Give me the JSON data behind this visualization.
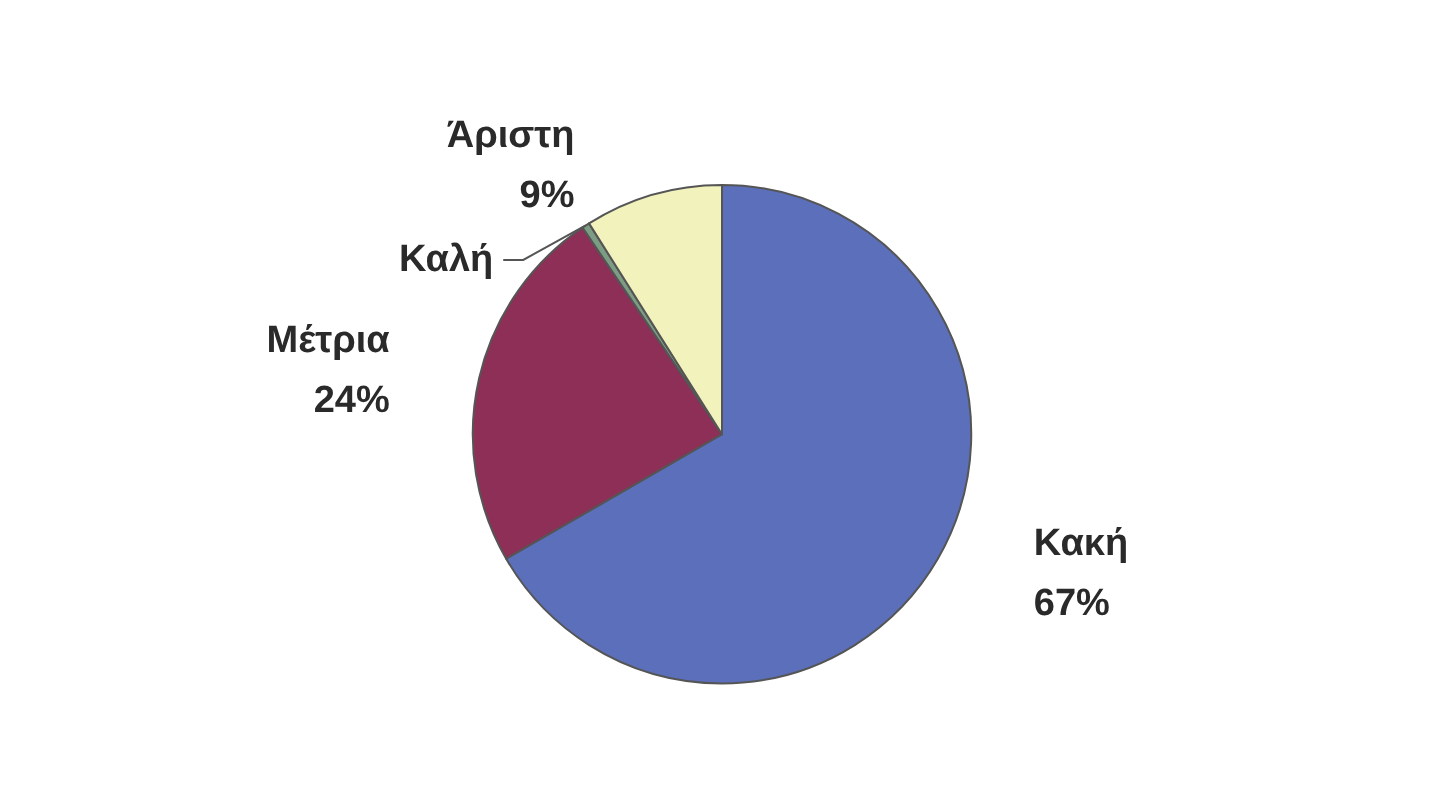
{
  "chart_data": {
    "type": "pie",
    "categories": [
      "Κακή",
      "Μέτρια",
      "Καλή",
      "Άριστη"
    ],
    "values": [
      67,
      24,
      0.5,
      9
    ],
    "value_labels": [
      "67%",
      "24%",
      null,
      "9%"
    ],
    "colors": [
      "#5b6fba",
      "#8e2f58",
      "#7d9c84",
      "#f2f2bd"
    ],
    "legend": false
  }
}
